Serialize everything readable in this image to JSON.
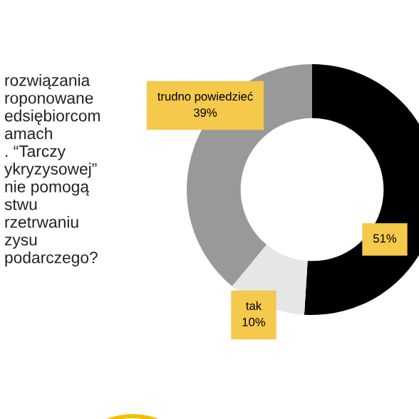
{
  "chart_data": {
    "type": "donut",
    "categories": [
      null,
      "tak",
      "trudno powiedzieć"
    ],
    "values": [
      51,
      10,
      39
    ],
    "colors": [
      "#000000",
      "#e6e6e6",
      "#999999"
    ],
    "value_labels": [
      "51%",
      "10%",
      "39%"
    ],
    "annotations": [
      "rozwiązania\nroponowane\nedsiębiorcom\namach\n. “Tarczy\nykryzysowej”\nnie pomogą\nstwu\nrzetrwaniu\nzysu\npodarczego?"
    ]
  }
}
